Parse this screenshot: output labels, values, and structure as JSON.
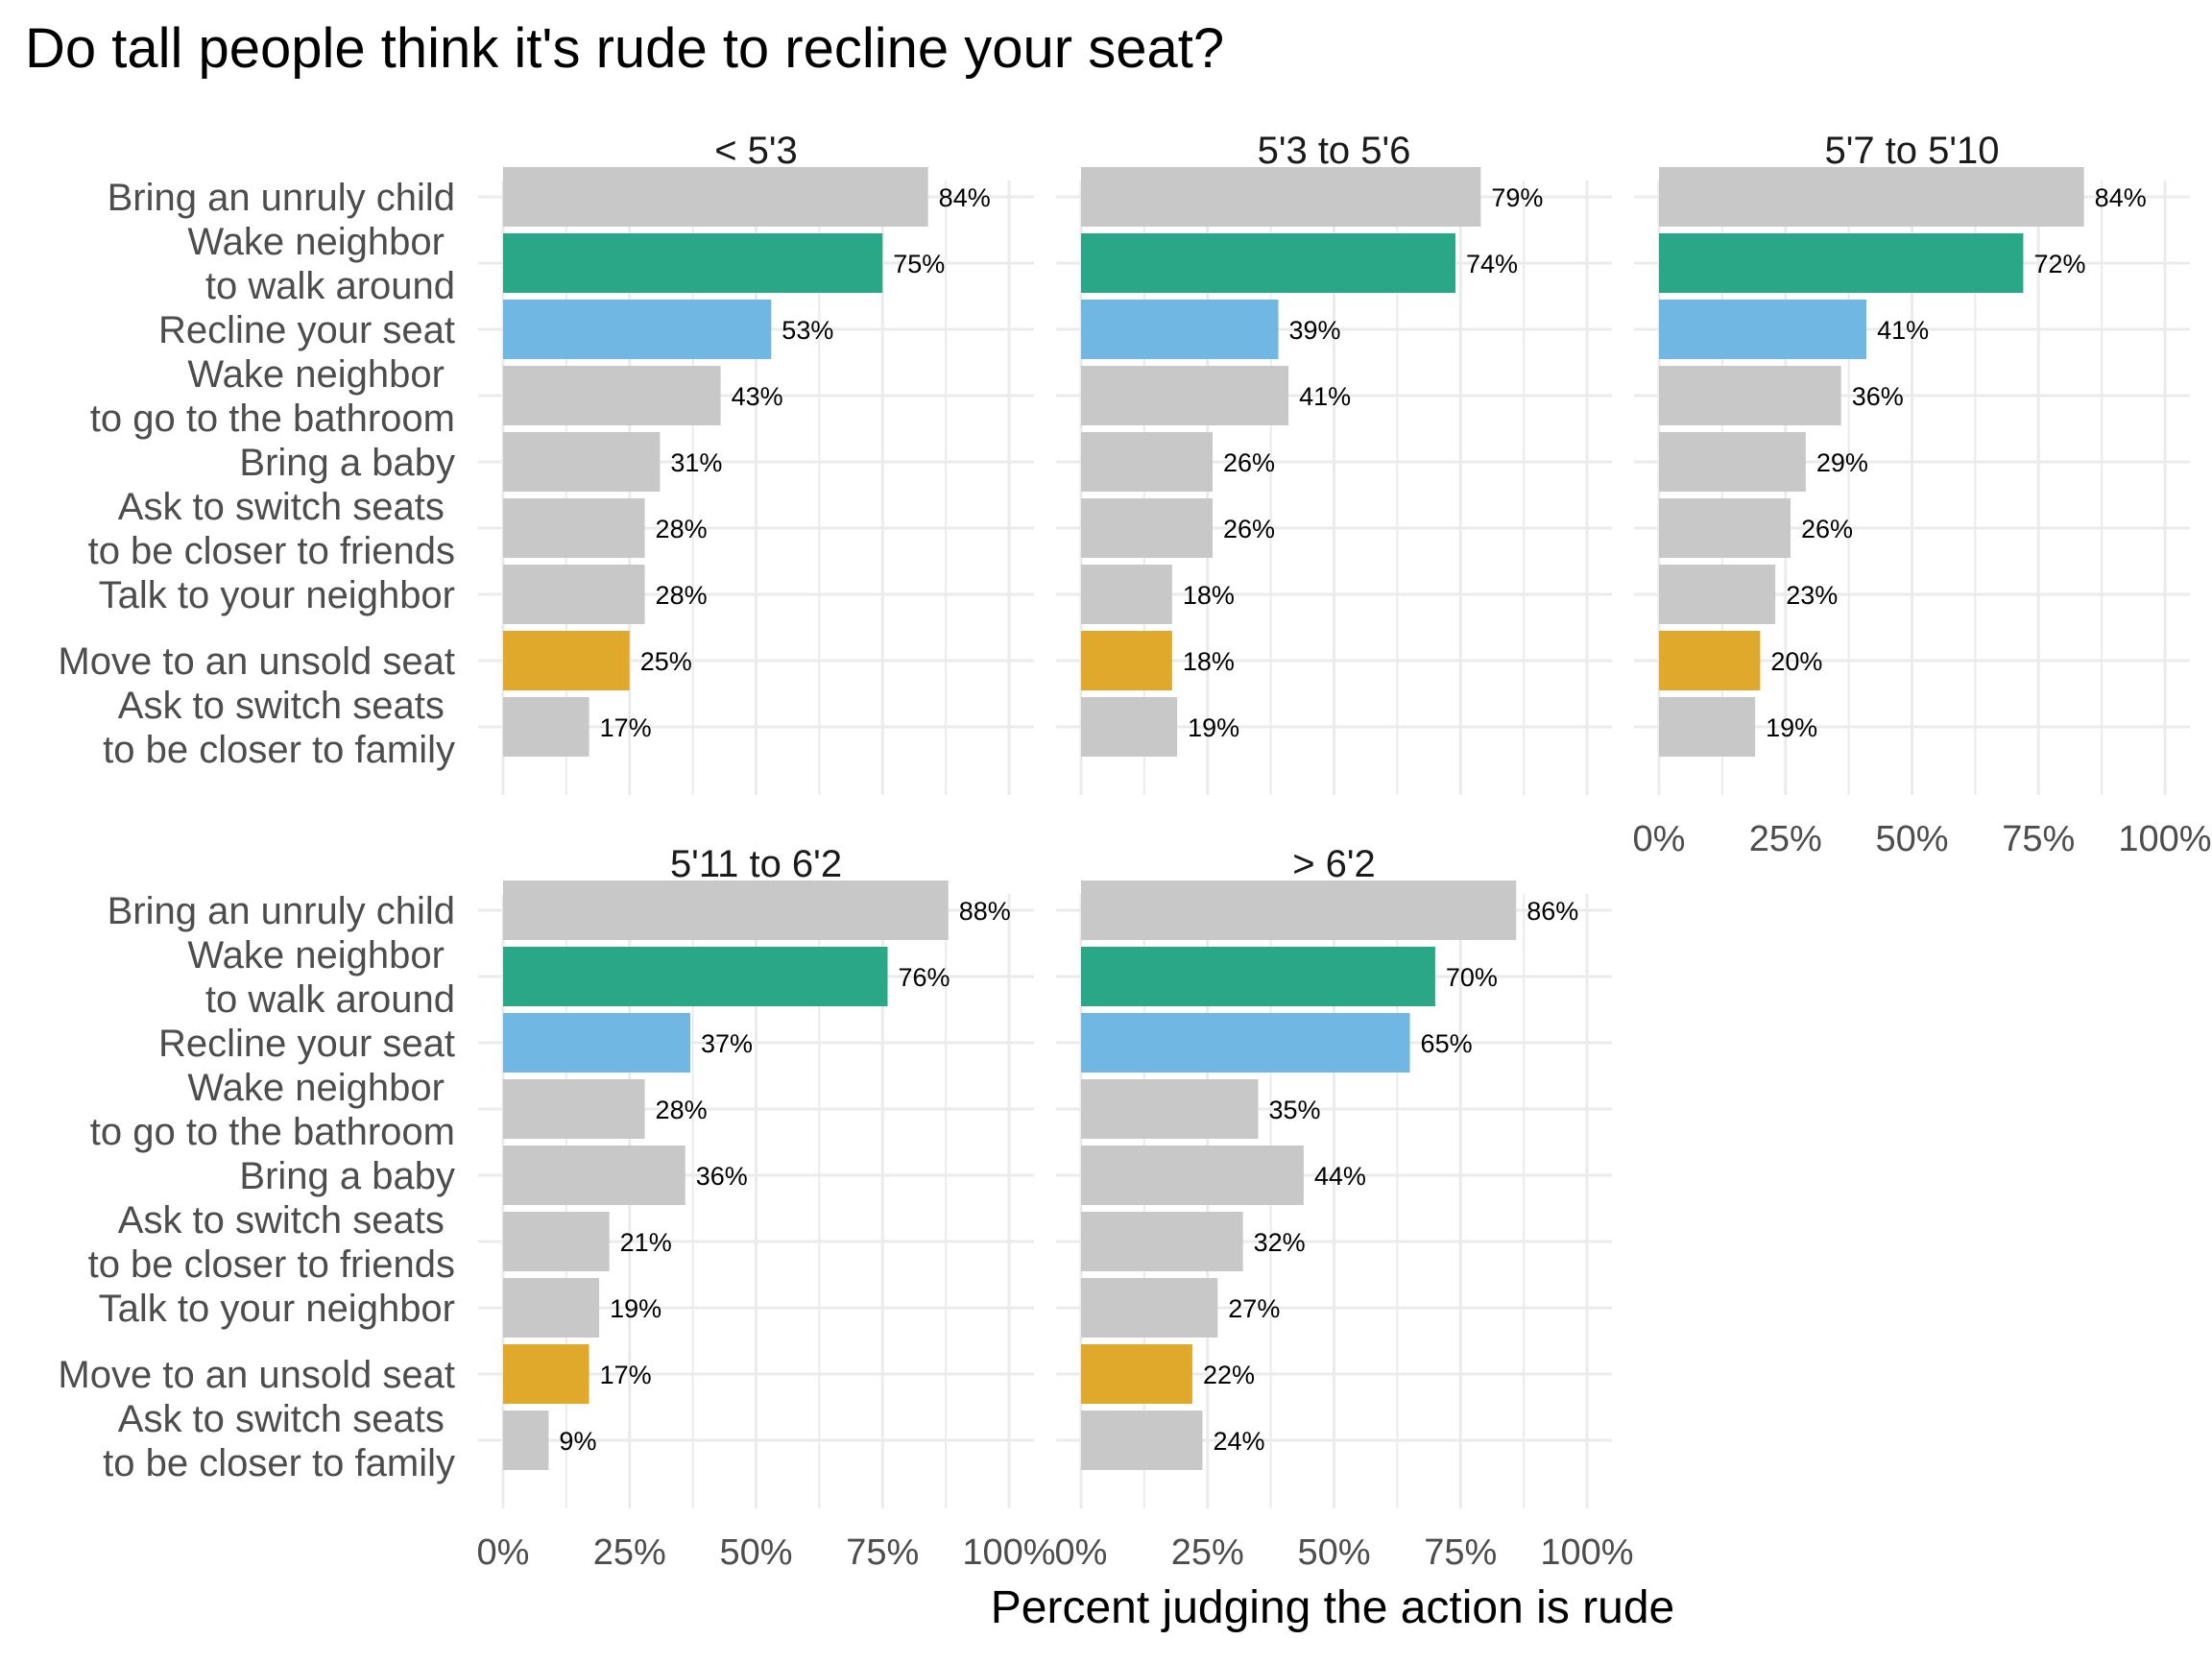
{
  "chart_data": {
    "type": "bar",
    "orientation": "horizontal",
    "title": "Do tall people think it's rude to recline your seat?",
    "xlabel": "Percent judging the action is rude",
    "ylabel": "",
    "xlim": [
      0,
      1
    ],
    "x_ticks": [
      "0%",
      "25%",
      "50%",
      "75%",
      "100%"
    ],
    "grid": true,
    "legend": "none",
    "categories": [
      [
        "Bring an unruly child"
      ],
      [
        "Wake neighbor ",
        "to walk around"
      ],
      [
        "Recline your seat"
      ],
      [
        "Wake neighbor ",
        "to go to the bathroom"
      ],
      [
        "Bring a baby"
      ],
      [
        "Ask to switch seats ",
        "to be closer to friends"
      ],
      [
        "Talk to your neighbor"
      ],
      [
        "Move to an unsold seat"
      ],
      [
        "Ask to switch seats ",
        "to be closer to family"
      ]
    ],
    "bar_colors": [
      "#c8c8c8",
      "#2aa787",
      "#71b7e3",
      "#c8c8c8",
      "#c8c8c8",
      "#c8c8c8",
      "#c8c8c8",
      "#e1a92c",
      "#c8c8c8"
    ],
    "panels": [
      {
        "name": "< 5'3",
        "values": [
          84,
          75,
          53,
          43,
          31,
          28,
          28,
          25,
          17
        ]
      },
      {
        "name": "5'3 to 5'6",
        "values": [
          79,
          74,
          39,
          41,
          26,
          26,
          18,
          18,
          19
        ]
      },
      {
        "name": "5'7 to 5'10",
        "values": [
          84,
          72,
          41,
          36,
          29,
          26,
          23,
          20,
          19
        ]
      },
      {
        "name": "5'11 to 6'2",
        "values": [
          88,
          76,
          37,
          28,
          36,
          21,
          19,
          17,
          9
        ]
      },
      {
        "name": "> 6'2",
        "values": [
          86,
          70,
          65,
          35,
          44,
          32,
          27,
          22,
          24
        ]
      }
    ]
  }
}
